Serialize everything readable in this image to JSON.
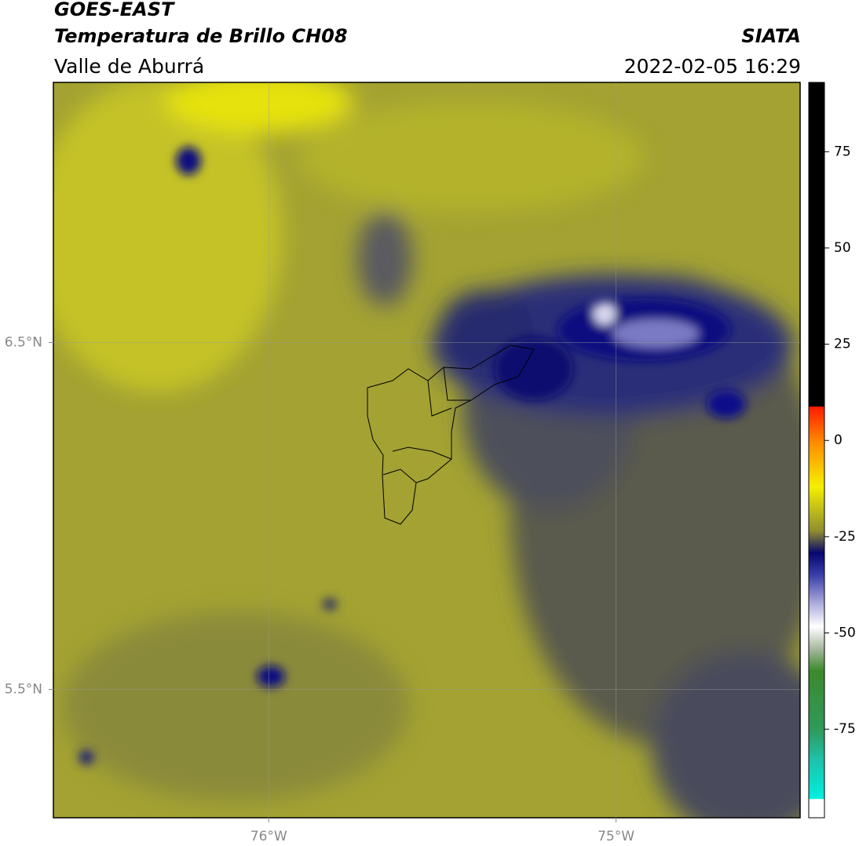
{
  "header": {
    "title": "GOES-EAST",
    "subtitle": "Temperatura de Brillo CH08",
    "region": "Valle de Aburrá",
    "source": "SIATA",
    "datetime": "2022-02-05 16:29"
  },
  "map": {
    "xlim": [
      -76.62,
      -74.47
    ],
    "ylim": [
      5.13,
      7.25
    ],
    "xticks": [
      {
        "value": -76,
        "label": "76°W"
      },
      {
        "value": -75,
        "label": "75°W"
      }
    ],
    "yticks": [
      {
        "value": 6.5,
        "label": "6.5°N"
      },
      {
        "value": 5.5,
        "label": "5.5°N"
      }
    ],
    "grid": true
  },
  "colorbar": {
    "clim": [
      -98,
      93
    ],
    "ticks": [
      -75,
      -50,
      -25,
      0,
      25,
      50,
      75
    ]
  }
}
